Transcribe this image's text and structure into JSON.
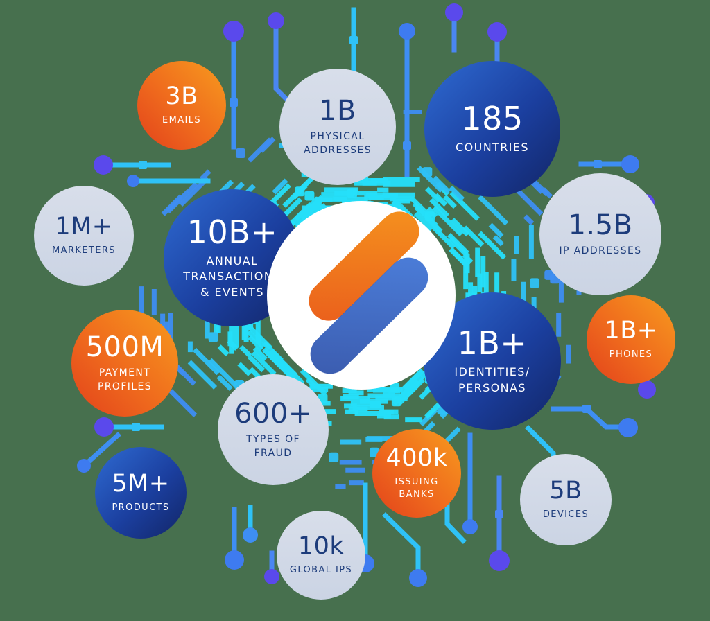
{
  "colors": {
    "background": "#47704E",
    "light_bubble": "#D1D9E6",
    "navy_text": "#1D3C7B",
    "orange_gradient_start": "#F79B1E",
    "orange_gradient_end": "#E2421C",
    "blue_gradient_start": "#2F6BD2",
    "blue_gradient_end": "#122566",
    "center_bg": "#FFFFFF",
    "logo_orange_start": "#E8551C",
    "logo_orange_end": "#F79B1E",
    "logo_blue_start": "#27479F",
    "logo_blue_end": "#3E77DC",
    "trace_cyan": "#25E0FA",
    "trace_sky": "#2FC2F7",
    "trace_blue": "#3E8EF3",
    "trace_violet": "#4A86F2",
    "node_indigo": "#5A49EC",
    "node_blue": "#3E7BF0"
  },
  "icons": {
    "logo": "dual-pill-brand-logo",
    "background_pattern": "circuit-board-traces"
  },
  "stats": {
    "emails": {
      "value": "3B",
      "label_lines": [
        "EMAILS"
      ]
    },
    "physical": {
      "value": "1B",
      "label_lines": [
        "PHYSICAL",
        "ADDRESSES"
      ]
    },
    "countries": {
      "value": "185",
      "label_lines": [
        "COUNTRIES"
      ]
    },
    "marketers": {
      "value": "1M+",
      "label_lines": [
        "MARKETERS"
      ]
    },
    "transactions": {
      "value": "10B+",
      "label_lines": [
        "ANNUAL",
        "TRANSACTIONS",
        "& EVENTS"
      ]
    },
    "ip": {
      "value": "1.5B",
      "label_lines": [
        "IP ADDRESSES"
      ]
    },
    "payment": {
      "value": "500M",
      "label_lines": [
        "PAYMENT",
        "PROFILES"
      ]
    },
    "identities": {
      "value": "1B+",
      "label_lines": [
        "IDENTITIES/",
        "PERSONAS"
      ]
    },
    "phones": {
      "value": "1B+",
      "label_lines": [
        "PHONES"
      ]
    },
    "fraud": {
      "value": "600+",
      "label_lines": [
        "TYPES OF",
        "FRAUD"
      ]
    },
    "products": {
      "value": "5M+",
      "label_lines": [
        "PRODUCTS"
      ]
    },
    "banks": {
      "value": "400k",
      "label_lines": [
        "ISSUING",
        "BANKS"
      ]
    },
    "devices": {
      "value": "5B",
      "label_lines": [
        "DEVICES"
      ]
    },
    "global": {
      "value": "10k",
      "label_lines": [
        "GLOBAL IPS"
      ]
    }
  }
}
